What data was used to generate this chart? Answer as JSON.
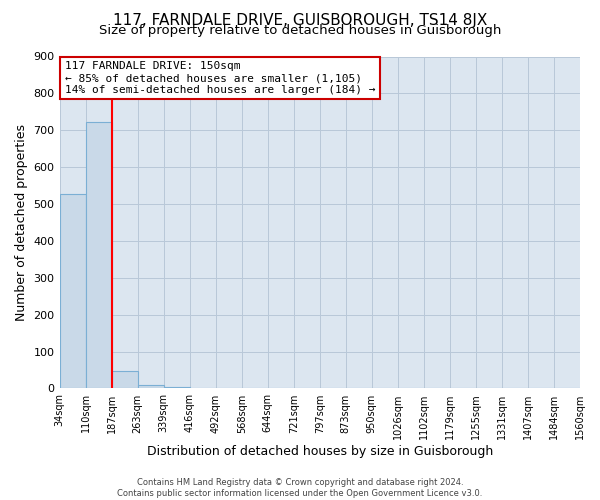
{
  "title": "117, FARNDALE DRIVE, GUISBOROUGH, TS14 8JX",
  "subtitle": "Size of property relative to detached houses in Guisborough",
  "xlabel": "Distribution of detached houses by size in Guisborough",
  "ylabel": "Number of detached properties",
  "bar_values": [
    527,
    722,
    48,
    10,
    5,
    0,
    0,
    0,
    0,
    0,
    0,
    0,
    0,
    0,
    0,
    0,
    0,
    0,
    0,
    0
  ],
  "bin_labels": [
    "34sqm",
    "110sqm",
    "187sqm",
    "263sqm",
    "339sqm",
    "416sqm",
    "492sqm",
    "568sqm",
    "644sqm",
    "721sqm",
    "797sqm",
    "873sqm",
    "950sqm",
    "1026sqm",
    "1102sqm",
    "1179sqm",
    "1255sqm",
    "1331sqm",
    "1407sqm",
    "1484sqm",
    "1560sqm"
  ],
  "bar_color": "#c9d9e8",
  "bar_edge_color": "#7bafd4",
  "annotation_line1": "117 FARNDALE DRIVE: 150sqm",
  "annotation_line2": "← 85% of detached houses are smaller (1,105)",
  "annotation_line3": "14% of semi-detached houses are larger (184) →",
  "annotation_box_color": "#ffffff",
  "annotation_box_edge": "#cc0000",
  "ylim": [
    0,
    900
  ],
  "yticks": [
    0,
    100,
    200,
    300,
    400,
    500,
    600,
    700,
    800,
    900
  ],
  "footer_line1": "Contains HM Land Registry data © Crown copyright and database right 2024.",
  "footer_line2": "Contains public sector information licensed under the Open Government Licence v3.0.",
  "background_color": "#ffffff",
  "plot_bg_color": "#dce6f0",
  "grid_color": "#b8c8d8",
  "title_fontsize": 11,
  "subtitle_fontsize": 9.5,
  "axis_label_fontsize": 9,
  "tick_fontsize": 7,
  "ytick_fontsize": 8,
  "annotation_fontsize": 8,
  "footer_fontsize": 6
}
